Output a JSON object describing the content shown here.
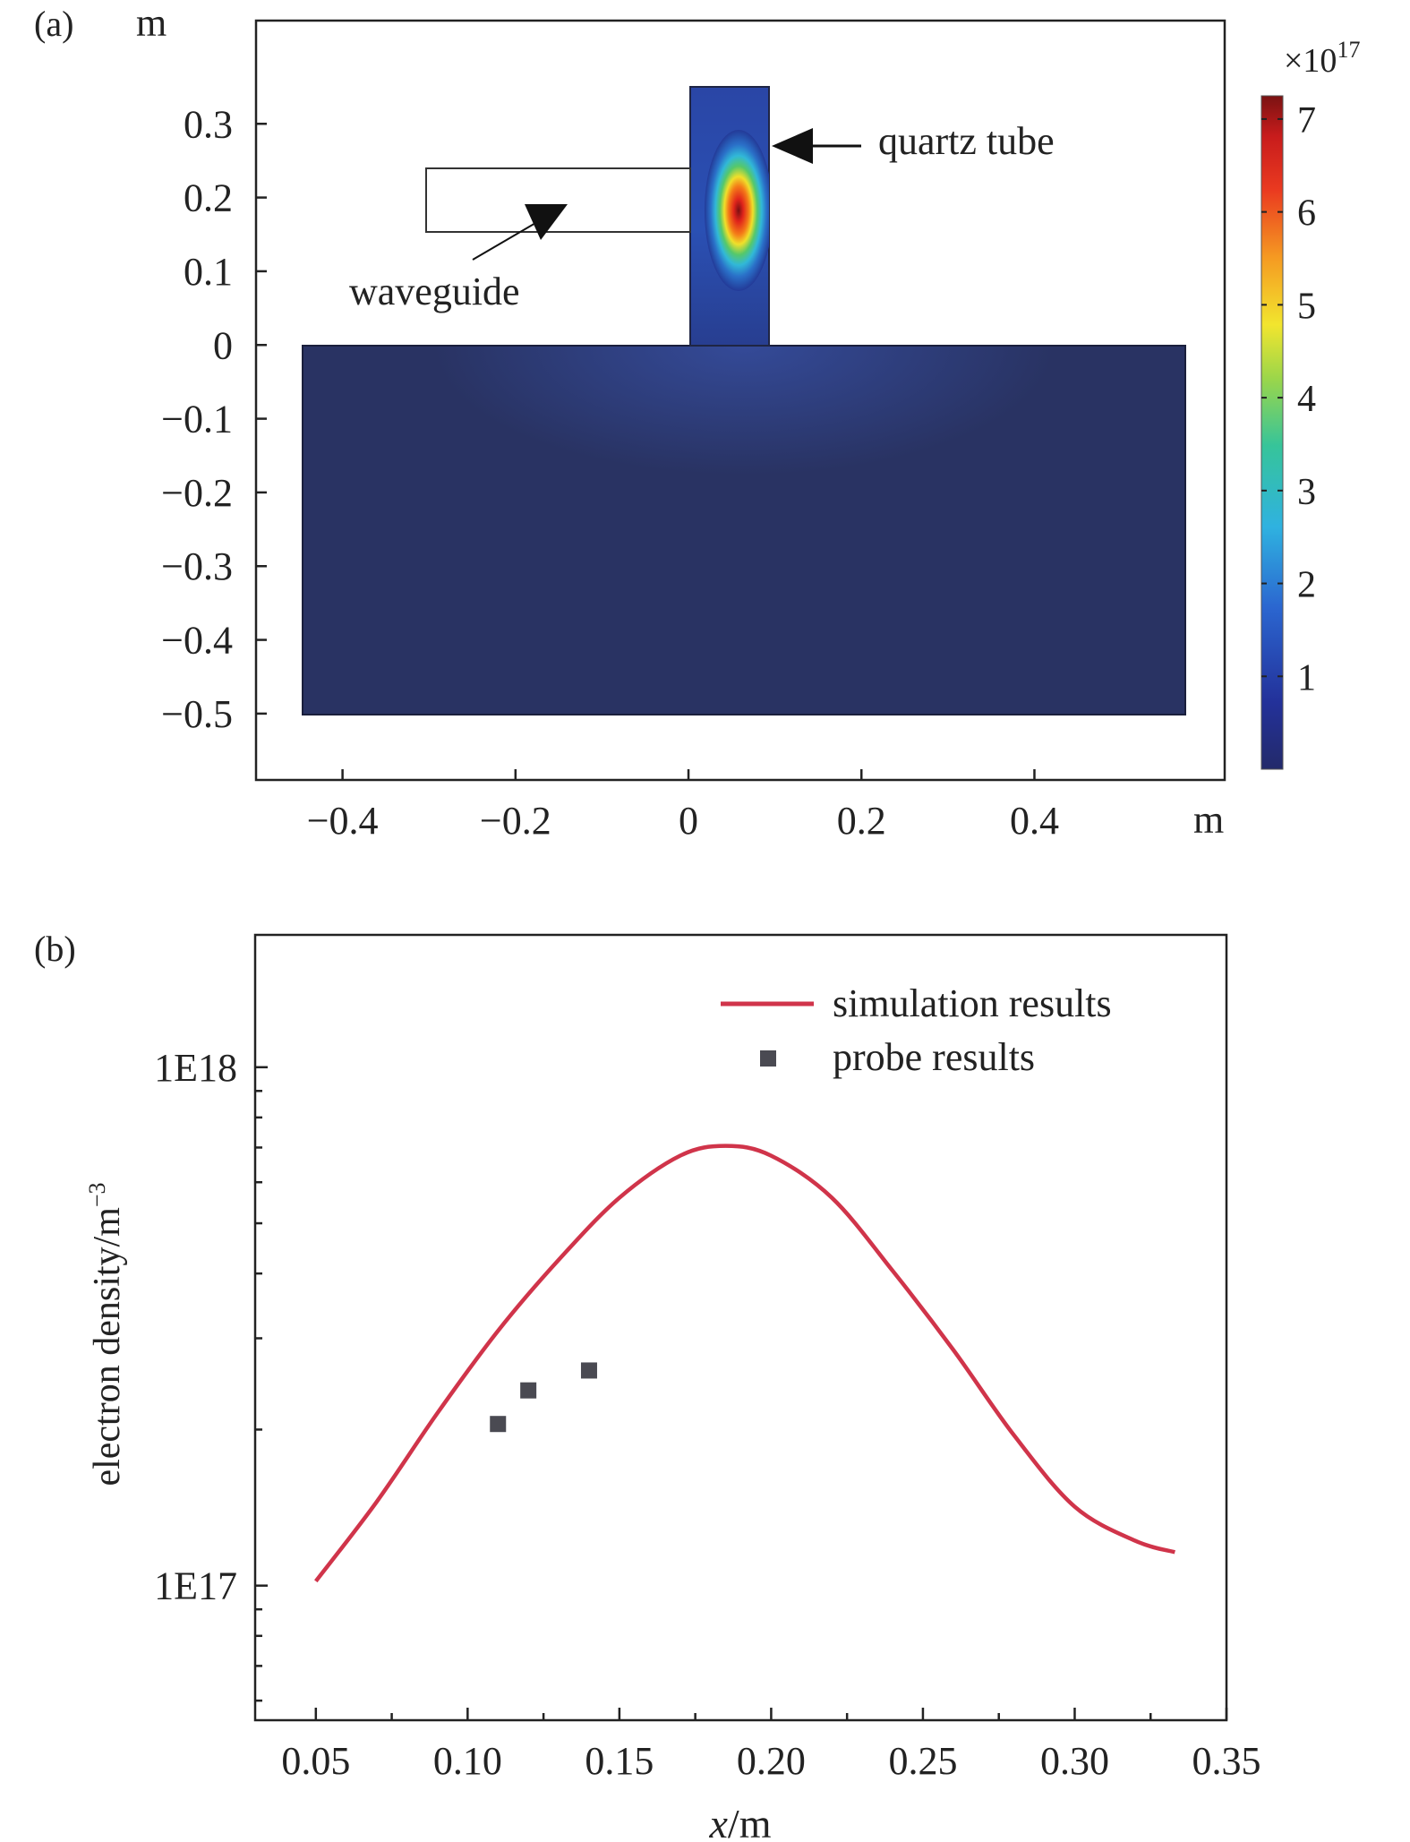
{
  "chart_data": [
    {
      "panel_label": "(a)",
      "type": "heatmap",
      "xlabel": "m",
      "ylabel": "m",
      "xlim": [
        -0.5,
        0.62
      ],
      "ylim": [
        -0.59,
        0.44
      ],
      "x_ticks": [
        -0.4,
        -0.2,
        0,
        0.2,
        0.4
      ],
      "x_tick_labels": [
        "−0.4",
        "−0.2",
        "0",
        "0.2",
        "0.4"
      ],
      "y_ticks": [
        0.3,
        0.2,
        0.1,
        0,
        -0.1,
        -0.2,
        -0.3,
        -0.4,
        -0.5
      ],
      "y_tick_labels": [
        "0.3",
        "0.2",
        "0.1",
        "0",
        "−0.1",
        "−0.2",
        "−0.3",
        "−0.4",
        "−0.5"
      ],
      "colorbar": {
        "multiplier": "×10",
        "exponent": "17",
        "range": [
          0,
          7.25
        ],
        "ticks": [
          1,
          2,
          3,
          4,
          5,
          6,
          7
        ],
        "tick_labels": [
          "1",
          "2",
          "3",
          "4",
          "5",
          "6",
          "7"
        ]
      },
      "regions": {
        "chamber": {
          "x": [
            -0.44,
            0.56
          ],
          "y": [
            -0.5,
            0.0
          ]
        },
        "quartz_tube": {
          "x": [
            0.0,
            0.12
          ],
          "y": [
            0.0,
            0.355
          ]
        },
        "waveguide": {
          "x": [
            -0.3,
            0.0
          ],
          "y": [
            0.158,
            0.245
          ]
        }
      },
      "peak": {
        "x": 0.057,
        "y": 0.185,
        "value": 7.0
      },
      "annotations": [
        {
          "text": "quartz tube",
          "target": [
            0.1,
            0.275
          ]
        },
        {
          "text": "waveguide",
          "target": [
            -0.17,
            0.19
          ]
        }
      ]
    },
    {
      "panel_label": "(b)",
      "type": "line",
      "xlabel_italic": "x",
      "xlabel_rest": "/m",
      "ylabel": "electron density/m",
      "ylabel_sup": "−3",
      "xlim": [
        0.03,
        0.35
      ],
      "y_scale": "log",
      "ylim": [
        5.5e+16,
        1.8e+18
      ],
      "x_ticks": [
        0.05,
        0.1,
        0.15,
        0.2,
        0.25,
        0.3,
        0.35
      ],
      "x_tick_labels": [
        "0.05",
        "0.10",
        "0.15",
        "0.20",
        "0.25",
        "0.30",
        "0.35"
      ],
      "y_ticks": [
        1e+17,
        1e+18
      ],
      "y_tick_labels": [
        "1E17",
        "1E18"
      ],
      "legend_position": "top-right",
      "series": [
        {
          "name": "simulation results",
          "kind": "line",
          "color": "#d0344a",
          "x": [
            0.05,
            0.07,
            0.09,
            0.11,
            0.13,
            0.15,
            0.17,
            0.185,
            0.2,
            0.22,
            0.24,
            0.26,
            0.28,
            0.3,
            0.32,
            0.333
          ],
          "y": [
            1.02e+17,
            1.45e+17,
            2.15e+17,
            3.1e+17,
            4.25e+17,
            5.6e+17,
            6.75e+17,
            7.05e+17,
            6.75e+17,
            5.6e+17,
            4.05e+17,
            2.85e+17,
            1.95e+17,
            1.42e+17,
            1.22e+17,
            1.16e+17
          ]
        },
        {
          "name": "probe results",
          "kind": "scatter",
          "color": "#4a4a52",
          "x": [
            0.11,
            0.12,
            0.14
          ],
          "y": [
            2.05e+17,
            2.38e+17,
            2.6e+17
          ]
        }
      ]
    }
  ]
}
